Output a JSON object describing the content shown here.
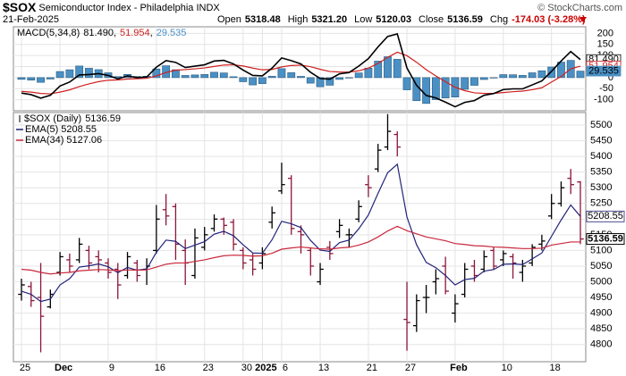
{
  "header": {
    "symbol": "$SOX",
    "name": "Semiconductor Index - Philadelphia INDX",
    "copyright": "© StockCharts.com",
    "date": "21-Feb-2025",
    "quote": [
      {
        "label": "Open",
        "value": "5318.48"
      },
      {
        "label": "High",
        "value": "5321.20"
      },
      {
        "label": "Low",
        "value": "5120.03"
      },
      {
        "label": "Close",
        "value": "5136.59"
      },
      {
        "label": "Chg",
        "value": "-174.03 (-3.28%)"
      }
    ]
  },
  "chart_data": [
    {
      "type": "macd",
      "label": "MACD(5,34,8)",
      "legend_values": [
        "81.490",
        "51.954",
        "29.535"
      ],
      "macd": {
        "color": "#000000",
        "values": [
          -70,
          -77,
          -93,
          -80,
          -38,
          -20,
          12,
          14,
          18,
          10,
          -6,
          8,
          0,
          3,
          47,
          77,
          69,
          46,
          52,
          58,
          75,
          78,
          62,
          34,
          10,
          8,
          43,
          89,
          77,
          62,
          24,
          -4,
          -7,
          17,
          23,
          52,
          86,
          139,
          186,
          198,
          44,
          -35,
          -81,
          -92,
          -111,
          -132,
          -112,
          -104,
          -80,
          -72,
          -54,
          -51,
          -51,
          -33,
          -15,
          28,
          75,
          118,
          81.49
        ]
      },
      "signal": {
        "color": "#d02020",
        "values": [
          -62.2,
          -65.5,
          -71.6,
          -73.5,
          -65.6,
          -55.5,
          -40.5,
          -28.4,
          -18.1,
          -11.9,
          -10.6,
          -6.5,
          -5.1,
          -3.3,
          7.9,
          23.2,
          33.4,
          36.2,
          39.7,
          43.8,
          50.7,
          56.8,
          57.9,
          52.6,
          43.1,
          35.3,
          37.0,
          48.5,
          54.8,
          56.4,
          49.2,
          37.4,
          27.5,
          25.2,
          24.7,
          30.8,
          43.0,
          64.3,
          91.4,
          115.1,
          99.3,
          69.5,
          36.1,
          7.7,
          -18.7,
          -43.9,
          -59.0,
          -69.0,
          -71.4,
          -71.5,
          -67.6,
          -63.9,
          -61.0,
          -54.8,
          -46.0,
          -20,
          5,
          40,
          51.954
        ]
      },
      "histogram": {
        "color": "#4a90c4",
        "values": [
          -7.8,
          -11.5,
          -21.4,
          -6.5,
          27.6,
          35.5,
          52.5,
          42.4,
          36.1,
          21.9,
          4.6,
          14.5,
          5.1,
          6.3,
          39.1,
          53.8,
          35.6,
          9.8,
          12.3,
          14.2,
          24.3,
          21.2,
          4.1,
          -18.6,
          -33.1,
          -27.3,
          6.0,
          40.5,
          22.2,
          5.6,
          -25.2,
          -41.4,
          -34.5,
          -8.2,
          -1.7,
          21.2,
          43.0,
          74.7,
          94.6,
          82.9,
          -55.3,
          -104.5,
          -117.1,
          -99.7,
          -92.3,
          -88.1,
          -53.0,
          -35.0,
          -8.6,
          -0.5,
          13.6,
          12.9,
          10.0,
          21.8,
          31.0,
          48,
          70,
          78,
          29.535
        ]
      },
      "ylim": [
        -150,
        230
      ],
      "yticks": [
        200,
        150,
        100,
        50,
        0,
        -50,
        -100
      ],
      "grid": true
    },
    {
      "type": "ohlc",
      "title": "$SOX (Daily)",
      "up_color": "#000000",
      "down_color": "#8b1538",
      "grid": true,
      "categories": [
        "25",
        null,
        null,
        null,
        "Dec",
        null,
        null,
        null,
        null,
        "9",
        null,
        null,
        null,
        null,
        "16",
        null,
        null,
        null,
        null,
        "23",
        null,
        null,
        null,
        "30",
        null,
        "2025",
        null,
        "6",
        null,
        null,
        null,
        "13",
        null,
        null,
        null,
        null,
        "21",
        null,
        null,
        null,
        "27",
        null,
        null,
        null,
        null,
        "Feb",
        null,
        null,
        null,
        null,
        "10",
        null,
        null,
        null,
        null,
        "18",
        null,
        null,
        null
      ],
      "open": [
        4960,
        4985,
        4950,
        4920,
        5030,
        5070,
        5070,
        5100,
        5080,
        5060,
        5040,
        5020,
        5060,
        5040,
        5100,
        5230,
        5240,
        5100,
        5020,
        5110,
        5170,
        5200,
        5190,
        5100,
        5070,
        5060,
        5190,
        5290,
        5330,
        5160,
        5100,
        5000,
        5110,
        5160,
        5150,
        5200,
        5310,
        5360,
        5430,
        5470,
        4880,
        4860,
        4950,
        5000,
        5050,
        4900,
        4960,
        5050,
        5040,
        5100,
        5070,
        5080,
        5030,
        5060,
        5120,
        5210,
        5250,
        5330,
        5318.48
      ],
      "high": [
        5010,
        5000,
        5060,
        4975,
        5095,
        5090,
        5140,
        5115,
        5100,
        5075,
        5060,
        5095,
        5070,
        5075,
        5245,
        5280,
        5250,
        5135,
        5170,
        5175,
        5215,
        5205,
        5200,
        5110,
        5090,
        5110,
        5240,
        5380,
        5340,
        5180,
        5110,
        5060,
        5130,
        5200,
        5170,
        5260,
        5340,
        5440,
        5535,
        5480,
        5000,
        4960,
        4990,
        5040,
        5080,
        4960,
        5060,
        5070,
        5100,
        5110,
        5100,
        5090,
        5070,
        5120,
        5150,
        5280,
        5320,
        5360,
        5321.2
      ],
      "low": [
        4940,
        4920,
        4775,
        4915,
        5020,
        5030,
        5060,
        5040,
        5030,
        5010,
        4945,
        5010,
        5000,
        4990,
        5090,
        5180,
        5070,
        4990,
        5010,
        5100,
        5160,
        5150,
        5100,
        5040,
        5020,
        5040,
        5170,
        5280,
        5150,
        5090,
        5020,
        4990,
        5070,
        5140,
        5110,
        5190,
        5270,
        5350,
        5420,
        5400,
        4780,
        4840,
        4900,
        4960,
        4960,
        4870,
        4950,
        5000,
        5030,
        5040,
        5050,
        5010,
        5000,
        5050,
        5100,
        5200,
        5240,
        5280,
        5120.03
      ],
      "close": [
        4990,
        4940,
        4890,
        4960,
        5080,
        5050,
        5120,
        5060,
        5070,
        5030,
        4990,
        5080,
        5020,
        5050,
        5200,
        5210,
        5120,
        5060,
        5140,
        5150,
        5200,
        5180,
        5120,
        5060,
        5040,
        5090,
        5220,
        5310,
        5170,
        5150,
        5050,
        5040,
        5090,
        5180,
        5150,
        5240,
        5300,
        5420,
        5480,
        5430,
        4870,
        4940,
        4950,
        5010,
        4970,
        4930,
        5040,
        5020,
        5080,
        5050,
        5090,
        5060,
        5050,
        5110,
        5130,
        5250,
        5300,
        5310,
        5136.59
      ],
      "series": [
        {
          "name": "EMA(5)",
          "color": "#23237a",
          "values": [
            4970,
            4960,
            4937,
            4945,
            4990,
            5010,
            5047,
            5051,
            5057,
            5048,
            5029,
            5046,
            5037,
            5041,
            5094,
            5133,
            5129,
            5106,
            5117,
            5128,
            5152,
            5161,
            5147,
            5118,
            5092,
            5091,
            5134,
            5193,
            5185,
            5173,
            5132,
            5101,
            5097,
            5125,
            5133,
            5169,
            5213,
            5282,
            5348,
            5375,
            5207,
            5118,
            5062,
            5045,
            5020,
            4990,
            5007,
            5011,
            5034,
            5039,
            5056,
            5057,
            5055,
            5073,
            5092,
            5145,
            5197,
            5245,
            5208.55
          ]
        },
        {
          "name": "EMA(34)",
          "color": "#c8283c",
          "values": [
            5040,
            5037,
            5030,
            5025,
            5028,
            5030,
            5035,
            5037,
            5039,
            5038,
            5035,
            5038,
            5037,
            5038,
            5047,
            5056,
            5060,
            5060,
            5065,
            5070,
            5077,
            5083,
            5085,
            5084,
            5082,
            5083,
            5091,
            5104,
            5108,
            5111,
            5108,
            5105,
            5104,
            5108,
            5110,
            5117,
            5127,
            5143,
            5162,
            5177,
            5163,
            5153,
            5143,
            5137,
            5131,
            5122,
            5119,
            5115,
            5114,
            5111,
            5110,
            5108,
            5106,
            5106,
            5107,
            5117,
            5122,
            5127,
            5127.06
          ]
        }
      ],
      "ylim": [
        4745,
        5540
      ],
      "yticks": [
        5500,
        5450,
        5400,
        5350,
        5300,
        5250,
        5200,
        5150,
        5100,
        5050,
        5000,
        4950,
        4900,
        4850,
        4800
      ]
    }
  ]
}
